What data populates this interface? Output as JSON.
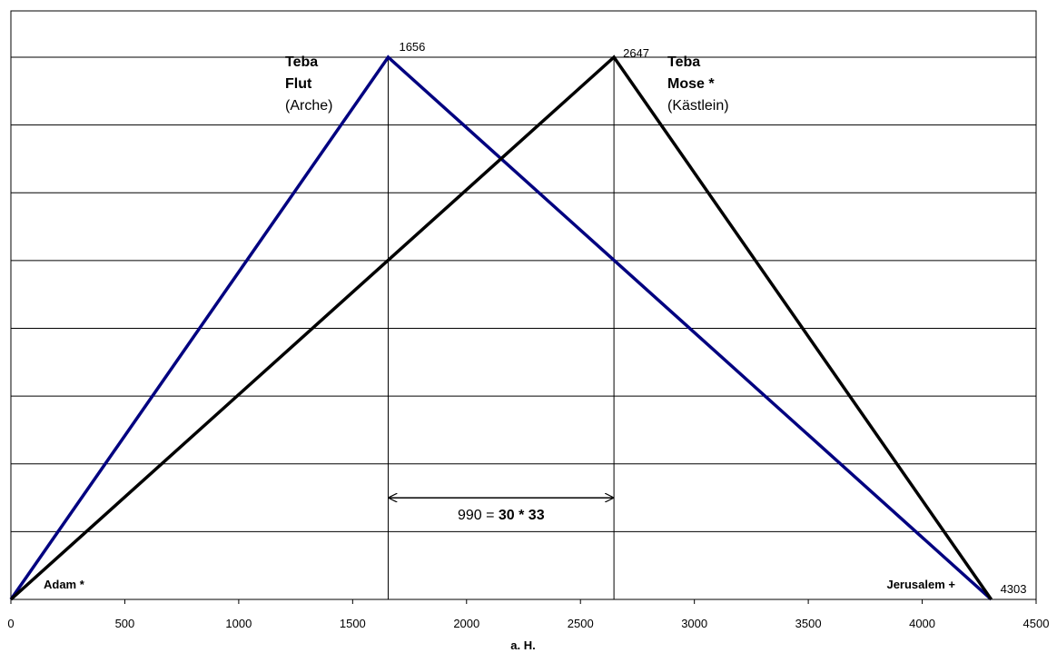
{
  "chart_data": {
    "type": "line",
    "xlabel": "a. H.",
    "ylabel": "",
    "xlim": [
      0,
      4500
    ],
    "ylim": [
      0,
      8
    ],
    "x_ticks": [
      "0",
      "500",
      "1000",
      "1500",
      "2000",
      "2500",
      "3000",
      "3500",
      "4000",
      "4500"
    ],
    "grid": "horizontal",
    "series": [
      {
        "color": "#000080",
        "points": [
          [
            0,
            0
          ],
          [
            1656,
            8
          ],
          [
            4303,
            0
          ]
        ]
      },
      {
        "color": "#000000",
        "points": [
          [
            0,
            0
          ],
          [
            2647,
            8
          ],
          [
            4303,
            0
          ]
        ]
      }
    ],
    "vertical_markers": [
      1656,
      2647
    ],
    "annotations": {
      "peak1_value": "1656",
      "peak2_value": "2647",
      "end_value": "4303",
      "flood_title": "Teba",
      "flood_name": "Flut",
      "flood_sub": "(Arche)",
      "moses_title": "Teba",
      "moses_name": "Mose *",
      "moses_sub": "(Kästlein)",
      "adam": "Adam *",
      "jerusalem": "Jerusalem +",
      "span_prefix": "990 = ",
      "span_bold": "30 * 33"
    }
  }
}
